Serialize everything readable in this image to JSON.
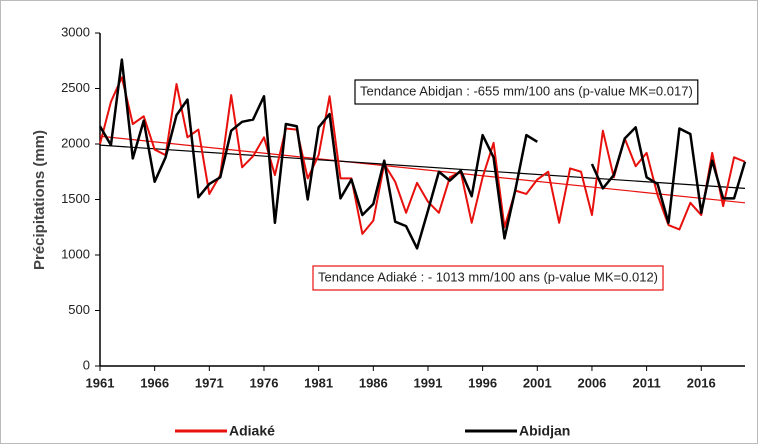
{
  "chart_data": {
    "type": "line",
    "y_label": "Précipitations (mm)",
    "x": [
      1961,
      1962,
      1963,
      1964,
      1965,
      1966,
      1967,
      1968,
      1969,
      1970,
      1971,
      1972,
      1973,
      1974,
      1975,
      1976,
      1977,
      1978,
      1979,
      1980,
      1981,
      1982,
      1983,
      1984,
      1985,
      1986,
      1987,
      1988,
      1989,
      1990,
      1991,
      1992,
      1993,
      1994,
      1995,
      1996,
      1997,
      1998,
      1999,
      2000,
      2001,
      2002,
      2003,
      2004,
      2005,
      2006,
      2007,
      2008,
      2009,
      2010,
      2011,
      2012,
      2013,
      2014,
      2015,
      2016,
      2017,
      2018,
      2019,
      2020
    ],
    "series": [
      {
        "name": "Adiaké",
        "color": "#e8100c",
        "values": [
          2000,
          2380,
          2600,
          2180,
          2250,
          1950,
          1900,
          2540,
          2060,
          2130,
          1550,
          1720,
          2440,
          1790,
          1890,
          2060,
          1720,
          2140,
          2130,
          1690,
          1900,
          2430,
          1690,
          1690,
          1190,
          1310,
          1820,
          1660,
          1380,
          1650,
          1480,
          1380,
          1700,
          1750,
          1290,
          1700,
          2010,
          1250,
          1580,
          1550,
          1680,
          1750,
          1290,
          1780,
          1750,
          1360,
          2120,
          1700,
          2050,
          1800,
          1920,
          1540,
          1270,
          1230,
          1470,
          1360,
          1920,
          1440,
          1880,
          1840
        ]
      },
      {
        "name": "Abidjan",
        "color": "#000000",
        "values": [
          2160,
          1990,
          2760,
          1870,
          2210,
          1660,
          1880,
          2260,
          2400,
          1520,
          1640,
          1700,
          2120,
          2200,
          2220,
          2430,
          1290,
          2180,
          2160,
          1500,
          2150,
          2270,
          1510,
          1680,
          1360,
          1460,
          1850,
          1300,
          1260,
          1060,
          1400,
          1750,
          1670,
          1760,
          1530,
          2080,
          1880,
          1150,
          1590,
          2080,
          2020,
          null,
          null,
          null,
          null,
          1820,
          1600,
          1720,
          2050,
          2150,
          1700,
          1640,
          1290,
          2140,
          2090,
          1380,
          1850,
          1510,
          1510,
          1840
        ]
      }
    ],
    "trend_lines": [
      {
        "color": "#e8100c",
        "x": [
          1961,
          2020
        ],
        "values": [
          2070,
          1470
        ]
      },
      {
        "color": "#000000",
        "x": [
          1961,
          2020
        ],
        "values": [
          1990,
          1600
        ]
      }
    ],
    "annotations": [
      {
        "text": "Tendance Abidjan : -655 mm/100 ans (p-value MK=0.017)",
        "color": "#000000"
      },
      {
        "text": "Tendance Adiaké : - 1013 mm/100 ans (p-value MK=0.012)",
        "color": "#e8100c"
      }
    ],
    "xlim": [
      1961,
      2020
    ],
    "xticks": [
      1961,
      1966,
      1971,
      1976,
      1981,
      1986,
      1991,
      1996,
      2001,
      2006,
      2011,
      2016
    ],
    "ylim": [
      0,
      3000
    ],
    "yticks": [
      0,
      500,
      1000,
      1500,
      2000,
      2500,
      3000
    ]
  }
}
